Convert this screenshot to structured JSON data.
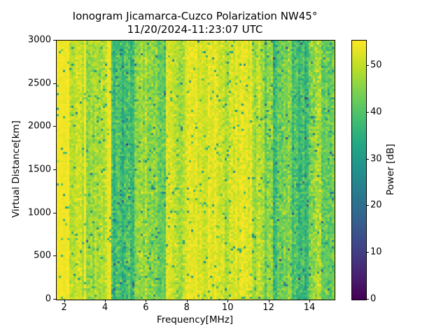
{
  "figure": {
    "background": "#ffffff",
    "text_color": "#000000"
  },
  "chart_data": {
    "type": "heatmap",
    "title": "Ionogram Jicamarca-Cuzco Polarization NW45°",
    "subtitle": "11/20/2024-11:23:07 UTC",
    "xlabel": "Frequency[MHz]",
    "ylabel": "Virtual Distance[km]",
    "x_range": [
      1.6,
      15.2
    ],
    "y_range": [
      0,
      3000
    ],
    "x_ticks": [
      2,
      4,
      6,
      8,
      10,
      12,
      14
    ],
    "y_ticks": [
      0,
      500,
      1000,
      1500,
      2000,
      2500,
      3000
    ],
    "grid": false,
    "legend": "none",
    "colorbar": {
      "label": "Power [dB]",
      "range": [
        0,
        55.4
      ],
      "ticks": [
        0,
        10,
        20,
        30,
        40,
        50
      ],
      "colormap": "viridis",
      "position": "right"
    },
    "colormap_stops": [
      [
        0.0,
        "#440154"
      ],
      [
        0.1,
        "#482473"
      ],
      [
        0.2,
        "#414487"
      ],
      [
        0.3,
        "#355f8d"
      ],
      [
        0.4,
        "#2a788e"
      ],
      [
        0.5,
        "#21918c"
      ],
      [
        0.6,
        "#22a884"
      ],
      [
        0.7,
        "#44bf70"
      ],
      [
        0.8,
        "#7ad151"
      ],
      [
        0.9,
        "#bddf26"
      ],
      [
        1.0,
        "#fde725"
      ]
    ],
    "power_profile": [
      {
        "f0": 1.6,
        "f1": 2.25,
        "mean_db": 54.5,
        "spread_db": 1.5
      },
      {
        "f0": 2.25,
        "f1": 2.92,
        "mean_db": 50.5,
        "spread_db": 5.0
      },
      {
        "f0": 2.92,
        "f1": 3.03,
        "mean_db": 54.0,
        "spread_db": 2.0
      },
      {
        "f0": 3.03,
        "f1": 4.1,
        "mean_db": 48.0,
        "spread_db": 6.0
      },
      {
        "f0": 4.1,
        "f1": 4.22,
        "mean_db": 54.0,
        "spread_db": 2.0
      },
      {
        "f0": 4.22,
        "f1": 5.35,
        "mean_db": 38.0,
        "spread_db": 8.0
      },
      {
        "f0": 5.35,
        "f1": 6.15,
        "mean_db": 47.0,
        "spread_db": 6.5
      },
      {
        "f0": 6.15,
        "f1": 6.95,
        "mean_db": 44.0,
        "spread_db": 7.0
      },
      {
        "f0": 6.95,
        "f1": 7.32,
        "mean_db": 51.5,
        "spread_db": 4.5
      },
      {
        "f0": 7.32,
        "f1": 7.85,
        "mean_db": 47.5,
        "spread_db": 6.0
      },
      {
        "f0": 7.85,
        "f1": 9.45,
        "mean_db": 52.5,
        "spread_db": 4.0
      },
      {
        "f0": 9.45,
        "f1": 10.2,
        "mean_db": 50.0,
        "spread_db": 5.5
      },
      {
        "f0": 10.2,
        "f1": 11.1,
        "mean_db": 52.5,
        "spread_db": 4.0
      },
      {
        "f0": 11.1,
        "f1": 11.65,
        "mean_db": 48.5,
        "spread_db": 6.0
      },
      {
        "f0": 11.65,
        "f1": 12.1,
        "mean_db": 44.5,
        "spread_db": 7.0
      },
      {
        "f0": 12.1,
        "f1": 12.6,
        "mean_db": 39.0,
        "spread_db": 8.0
      },
      {
        "f0": 12.6,
        "f1": 13.1,
        "mean_db": 45.5,
        "spread_db": 7.0
      },
      {
        "f0": 13.1,
        "f1": 13.9,
        "mean_db": 38.5,
        "spread_db": 8.0
      },
      {
        "f0": 13.9,
        "f1": 14.65,
        "mean_db": 45.0,
        "spread_db": 7.5
      },
      {
        "f0": 14.65,
        "f1": 15.2,
        "mean_db": 43.0,
        "spread_db": 7.5
      }
    ],
    "speckle_noise": {
      "probability": 0.03,
      "min_drop_db": 8,
      "max_drop_db": 25
    }
  }
}
